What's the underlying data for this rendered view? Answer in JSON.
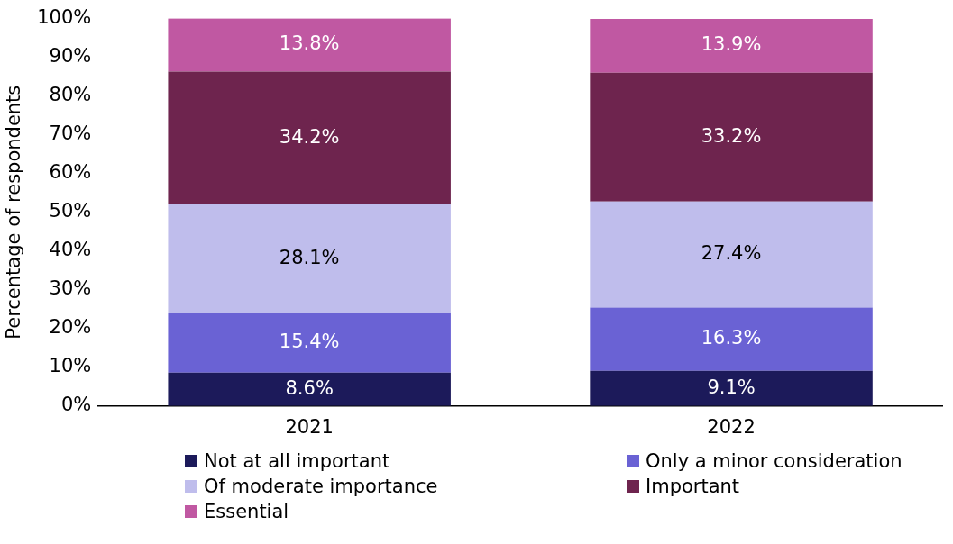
{
  "chart_data": {
    "type": "bar",
    "stacked": true,
    "ylabel": "Percentage of respondents",
    "categories": [
      "2021",
      "2022"
    ],
    "series": [
      {
        "name": "Not at all important",
        "color": "#1c1a5a",
        "values": [
          8.6,
          9.1
        ]
      },
      {
        "name": "Only a minor consideration",
        "color": "#6a62d4",
        "values": [
          15.4,
          16.3
        ]
      },
      {
        "name": "Of moderate importance",
        "color": "#bfbdec",
        "values": [
          28.1,
          27.4
        ]
      },
      {
        "name": "Important",
        "color": "#6e244e",
        "values": [
          34.2,
          33.2
        ]
      },
      {
        "name": "Essential",
        "color": "#c058a2",
        "values": [
          13.8,
          13.9
        ]
      }
    ],
    "ylim": [
      0,
      100
    ],
    "yticks": [
      {
        "value": 0,
        "label": "0%"
      },
      {
        "value": 10,
        "label": "10%"
      },
      {
        "value": 20,
        "label": "20%"
      },
      {
        "value": 30,
        "label": "30%"
      },
      {
        "value": 40,
        "label": "40%"
      },
      {
        "value": 50,
        "label": "50%"
      },
      {
        "value": 60,
        "label": "60%"
      },
      {
        "value": 70,
        "label": "70%"
      },
      {
        "value": 80,
        "label": "80%"
      },
      {
        "value": 90,
        "label": "90%"
      },
      {
        "value": 100,
        "label": "100%"
      }
    ],
    "value_labels": [
      [
        "8.6%",
        "9.1%"
      ],
      [
        "15.4%",
        "16.3%"
      ],
      [
        "28.1%",
        "27.4%"
      ],
      [
        "34.2%",
        "33.2%"
      ],
      [
        "13.8%",
        "13.9%"
      ]
    ],
    "grid": false,
    "legend": "bottom"
  }
}
